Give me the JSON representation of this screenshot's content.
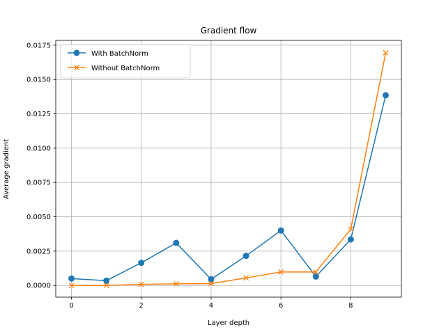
{
  "chart_data": {
    "type": "line",
    "title": "Gradient flow",
    "xlabel": "Layer depth",
    "ylabel": "Average gradient",
    "x": [
      0,
      1,
      2,
      3,
      4,
      5,
      6,
      7,
      8,
      9
    ],
    "xlim": [
      -0.45,
      9.45
    ],
    "ylim": [
      -0.00085,
      0.01785
    ],
    "xticks": [
      0,
      2,
      4,
      6,
      8
    ],
    "xtick_labels": [
      "0",
      "2",
      "4",
      "6",
      "8"
    ],
    "yticks": [
      0,
      0.0025,
      0.005,
      0.0075,
      0.01,
      0.0125,
      0.015,
      0.0175
    ],
    "ytick_labels": [
      "0.0000",
      "0.0025",
      "0.0050",
      "0.0075",
      "0.0100",
      "0.0125",
      "0.0150",
      "0.0175"
    ],
    "grid": true,
    "legend_position": "top-left",
    "series": [
      {
        "name": "With BatchNorm",
        "color": "#1f77b4",
        "marker": "circle",
        "values": [
          0.0005,
          0.00035,
          0.00165,
          0.0031,
          0.00045,
          0.00215,
          0.004,
          0.00065,
          0.00335,
          0.01385
        ]
      },
      {
        "name": "Without BatchNorm",
        "color": "#ff7f0e",
        "marker": "x",
        "values": [
          0.0,
          0.0,
          8e-05,
          0.00012,
          0.00013,
          0.00055,
          0.00098,
          0.00098,
          0.0041,
          0.01695
        ]
      }
    ]
  }
}
